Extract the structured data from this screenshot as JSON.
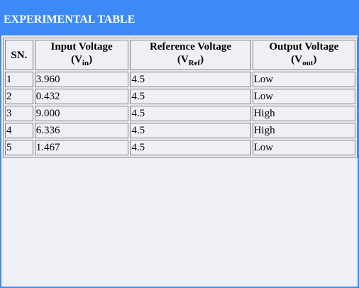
{
  "title": "EXPERIMENTAL TABLE",
  "table": {
    "headers": [
      {
        "main": "SN.",
        "symbol": "",
        "sub": ""
      },
      {
        "main": "Input Voltage",
        "symbol": "V",
        "sub": "in"
      },
      {
        "main": "Reference Voltage",
        "symbol": "V",
        "sub": "Ref"
      },
      {
        "main": "Output Voltage",
        "symbol": "V",
        "sub": "out"
      }
    ],
    "rows": [
      [
        "1",
        "3.960",
        "4.5",
        "Low"
      ],
      [
        "2",
        "0.432",
        "4.5",
        "Low"
      ],
      [
        "3",
        "9.000",
        "4.5",
        "High"
      ],
      [
        "4",
        "6.336",
        "4.5",
        "High"
      ],
      [
        "5",
        "1.467",
        "4.5",
        "Low"
      ]
    ]
  },
  "colors": {
    "header_bg": "#3d8af7",
    "panel_bg": "#eef0f6",
    "border": "#808080"
  }
}
